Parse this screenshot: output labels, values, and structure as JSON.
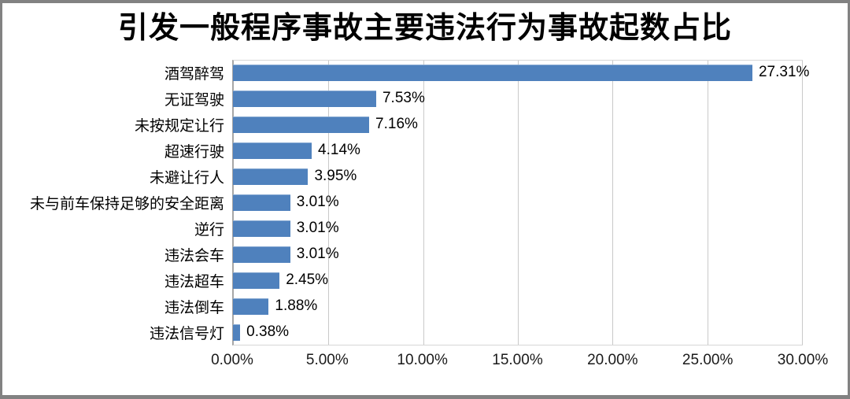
{
  "frame": {
    "background": "#ffffff",
    "border_color": "#828282"
  },
  "chart_data": {
    "type": "bar",
    "orientation": "horizontal",
    "title": "引发一般程序事故主要违法行为事故起数占比",
    "categories": [
      "酒驾醉驾",
      "无证驾驶",
      "未按规定让行",
      "超速行驶",
      "未避让行人",
      "未与前车保持足够的安全距离",
      "逆行",
      "违法会车",
      "违法超车",
      "违法倒车",
      "违法信号灯"
    ],
    "values": [
      27.31,
      7.53,
      7.16,
      4.14,
      3.95,
      3.01,
      3.01,
      3.01,
      2.45,
      1.88,
      0.38
    ],
    "data_labels": [
      "27.31%",
      "7.53%",
      "7.16%",
      "4.14%",
      "3.95%",
      "3.01%",
      "3.01%",
      "3.01%",
      "2.45%",
      "1.88%",
      "0.38%"
    ],
    "x_tick_labels": [
      "0.00%",
      "5.00%",
      "10.00%",
      "15.00%",
      "20.00%",
      "25.00%",
      "30.00%"
    ],
    "xlim": [
      0,
      30
    ],
    "xlabel": "",
    "ylabel": "",
    "grid": true,
    "legend": false,
    "bar_color": "#4F81BD",
    "gridline_color": "#C9C9C9",
    "axis_line_color": "#A6A6A6",
    "text_color": "#000000"
  }
}
